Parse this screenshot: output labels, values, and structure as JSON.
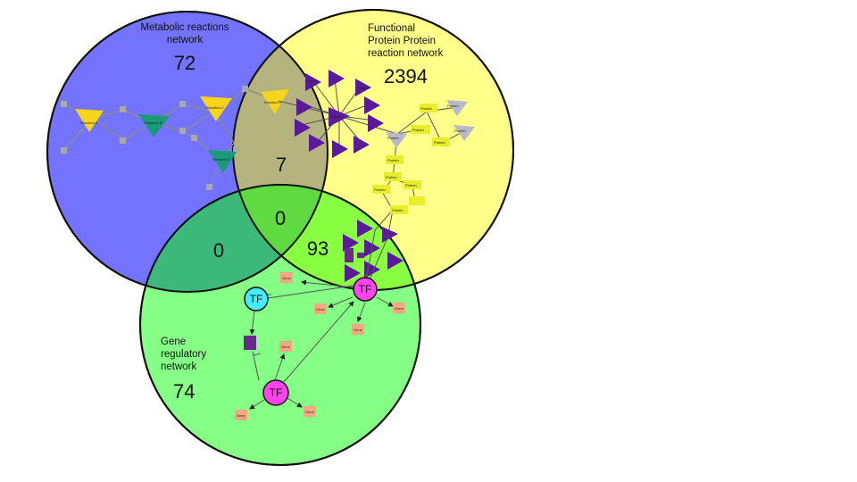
{
  "sets": {
    "metabolic": {
      "title_line1": "Metabolic reactions",
      "title_line2": "network",
      "count": "72",
      "color": "#7373ff"
    },
    "ppi": {
      "title_line1": "Functional",
      "title_line2": "Protein Protein",
      "title_line3": "reaction network",
      "count": "2394",
      "color": "#ffff80"
    },
    "grn": {
      "title_line1": "Gene",
      "title_line2": "regulatory",
      "title_line3": "network",
      "count": "74",
      "color": "#80ff80"
    }
  },
  "intersections": {
    "metabolic_ppi": "7",
    "metabolic_grn": "0",
    "ppi_grn": "93",
    "all_three": "0"
  },
  "node_labels": {
    "reaction_a": "Reaction A",
    "reaction_b": "Reaction B",
    "reaction_c": "Reaction C",
    "reaction_d": "Reaction D",
    "reaction_e": "Reaction E",
    "reaction_f": "Reaction F",
    "protein": "Protein",
    "gene": "Gene",
    "tf": "TF"
  },
  "colors": {
    "reaction_yellow": "#f7d51d",
    "reaction_teal": "#1a9a7a",
    "protein_purple": "#5a1a9a",
    "protein_grey": "#b8b8c8",
    "protein_yellow": "#e8ee2a",
    "tf_magenta": "#ff44ee",
    "tf_cyan": "#44eeff",
    "gene_orange": "#f5a880",
    "gene_purple": "#6a2a8a"
  }
}
